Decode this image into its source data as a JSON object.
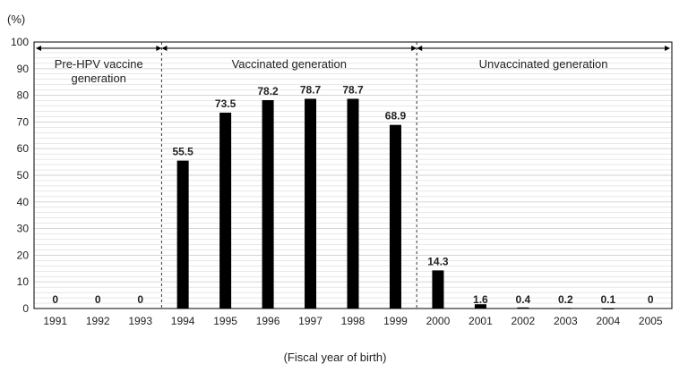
{
  "chart_data": {
    "type": "bar",
    "title": "",
    "ylabel": "(%)",
    "xlabel": "(Fiscal year of birth)",
    "ylim": [
      0,
      100
    ],
    "yticks": [
      0,
      10,
      20,
      30,
      40,
      50,
      60,
      70,
      80,
      90,
      100
    ],
    "grid": true,
    "legend": "none",
    "bar_color": "#000000",
    "grid_color": "#d0d0d0",
    "categories": [
      "1991",
      "1992",
      "1993",
      "1994",
      "1995",
      "1996",
      "1997",
      "1998",
      "1999",
      "2000",
      "2001",
      "2002",
      "2003",
      "2004",
      "2005"
    ],
    "values": [
      0,
      0,
      0,
      55.5,
      73.5,
      78.2,
      78.7,
      78.7,
      68.9,
      14.3,
      1.6,
      0.4,
      0.2,
      0.1,
      0
    ],
    "data_labels": [
      "0",
      "0",
      "0",
      "55.5",
      "73.5",
      "78.2",
      "78.7",
      "78.7",
      "68.9",
      "14.3",
      "1.6",
      "0.4",
      "0.2",
      "0.1",
      "0"
    ],
    "regions": [
      {
        "label_lines": [
          "Pre-HPV vaccine",
          "generation"
        ],
        "from": "1991",
        "to": "1993"
      },
      {
        "label_lines": [
          "Vaccinated generation"
        ],
        "from": "1994",
        "to": "1999"
      },
      {
        "label_lines": [
          "Unvaccinated generation"
        ],
        "from": "2000",
        "to": "2005"
      }
    ]
  }
}
